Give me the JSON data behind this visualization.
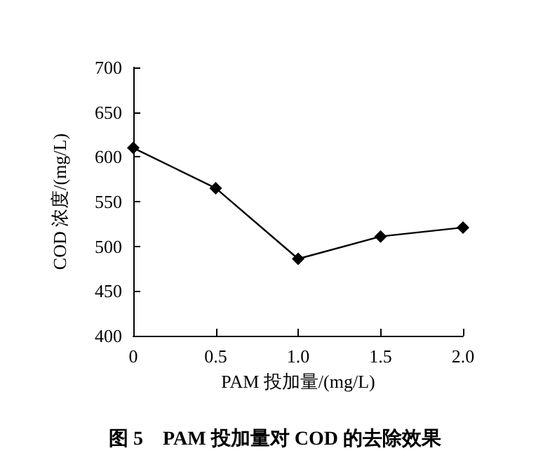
{
  "chart_data": {
    "type": "line",
    "title": "图 5　PAM 投加量对 COD 的去除效果",
    "xlabel": "PAM 投加量/(mg/L)",
    "ylabel": "COD 浓度/(mg/L)",
    "x": [
      0,
      0.5,
      1.0,
      1.5,
      2.0
    ],
    "series": [
      {
        "color": "#000000",
        "values": [
          610,
          565,
          486,
          511,
          521
        ]
      }
    ],
    "xlim": [
      0,
      2.0
    ],
    "xticks": [
      0,
      0.5,
      {
        "value": 1,
        "label": "1.0"
      },
      1.5,
      {
        "value": 2,
        "label": "2.0"
      }
    ],
    "ylim": [
      400,
      700
    ],
    "yticks": [
      400,
      450,
      500,
      550,
      600,
      650,
      700
    ],
    "marker": "diamond",
    "line_style": "solid",
    "grid": false
  }
}
